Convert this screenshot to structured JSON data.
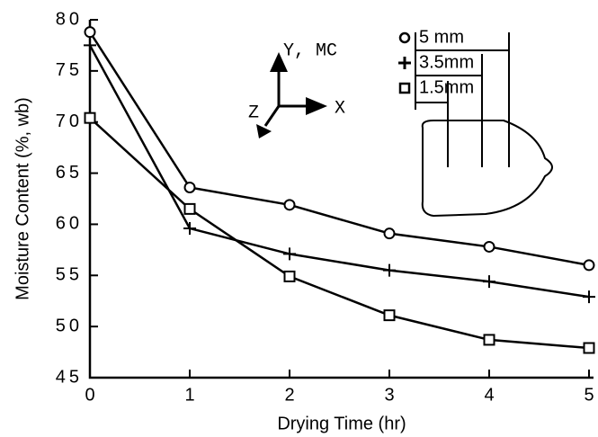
{
  "chart_data": {
    "type": "line",
    "x_label": "Drying Time (hr)",
    "y_label": "Moisture Content (%, wb)",
    "x": [
      0,
      1,
      2,
      3,
      4,
      5
    ],
    "series": [
      {
        "name": "5 mm",
        "color": "#000000",
        "marker": "circle",
        "values": [
          78.8,
          63.6,
          61.9,
          59.1,
          57.8,
          56.0
        ]
      },
      {
        "name": "3.5mm",
        "color": "#000000",
        "marker": "plus",
        "values": [
          77.5,
          59.6,
          57.1,
          55.5,
          54.4,
          52.9
        ]
      },
      {
        "name": "1.5mm",
        "color": "#000000",
        "marker": "square",
        "values": [
          70.4,
          61.5,
          54.9,
          51.1,
          48.7,
          47.9
        ]
      }
    ],
    "xlim": [
      0,
      5
    ],
    "xticks": [
      0,
      1,
      2,
      3,
      4,
      5
    ],
    "ylim": [
      45,
      80
    ],
    "yticks": [
      45,
      50,
      55,
      60,
      65,
      70,
      75,
      80
    ],
    "legend": "upper right",
    "annotations": [
      "Y, MC",
      "X",
      "Z"
    ]
  }
}
